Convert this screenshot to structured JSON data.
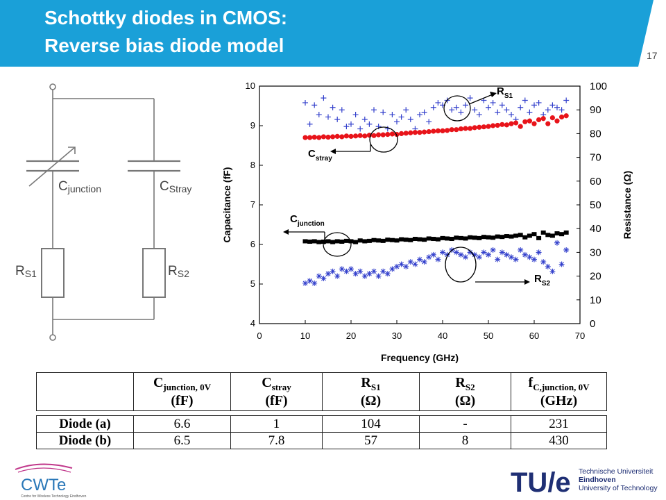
{
  "slide": {
    "title_line1": "Schottky diodes in CMOS:",
    "title_line2": "Reverse bias diode model",
    "page_number": "17",
    "banner_color": "#1aa0d8"
  },
  "schematic": {
    "c_junction": "C",
    "c_junction_sub": "junction",
    "c_stray": "C",
    "c_stray_sub": "Stray",
    "r_s1": "R",
    "r_s1_sub": "S1",
    "r_s2": "R",
    "r_s2_sub": "S2"
  },
  "chart_data": {
    "type": "scatter",
    "xlabel": "Frequency (GHz)",
    "ylabel_left": "Capacitance (fF)",
    "ylabel_right": "Resistance (Ω)",
    "xlim": [
      0,
      70
    ],
    "ylim_left": [
      4,
      10
    ],
    "ylim_right": [
      0,
      100
    ],
    "x_ticks": [
      0,
      10,
      20,
      30,
      40,
      50,
      60,
      70
    ],
    "y_left_ticks": [
      4,
      5,
      6,
      7,
      8,
      9,
      10
    ],
    "y_right_ticks": [
      0,
      10,
      20,
      30,
      40,
      50,
      60,
      70,
      80,
      90,
      100
    ],
    "annotations": [
      {
        "text": "R",
        "sub": "S1"
      },
      {
        "text": "C",
        "sub": "stray"
      },
      {
        "text": "C",
        "sub": "junction"
      },
      {
        "text": "R",
        "sub": "S2"
      }
    ],
    "series": [
      {
        "axis": "right",
        "marker": "plus",
        "color": "#3340cc",
        "x": [
          10,
          11,
          12,
          13,
          14,
          15,
          16,
          17,
          18,
          19,
          20,
          21,
          22,
          23,
          24,
          25,
          26,
          27,
          28,
          29,
          30,
          31,
          32,
          33,
          34,
          35,
          36,
          37,
          38,
          39,
          40,
          41,
          42,
          43,
          44,
          45,
          46,
          47,
          48,
          49,
          50,
          51,
          52,
          53,
          54,
          55,
          56,
          57,
          58,
          59,
          60,
          61,
          62,
          63,
          64,
          65,
          66,
          67
        ],
        "y": [
          93,
          84,
          92,
          88,
          95,
          87,
          91,
          86,
          90,
          83,
          84,
          88,
          82,
          86,
          84,
          90,
          83,
          89,
          82,
          88,
          85,
          87,
          90,
          86,
          82,
          88,
          89,
          85,
          91,
          93,
          92,
          94,
          90,
          91,
          89,
          92,
          95,
          90,
          88,
          94,
          91,
          93,
          89,
          92,
          90,
          88,
          86,
          91,
          94,
          89,
          92,
          93,
          88,
          90,
          92,
          91,
          90,
          94
        ]
      },
      {
        "axis": "left",
        "marker": "dot",
        "color": "#e8141a",
        "x": [
          10,
          11,
          12,
          13,
          14,
          15,
          16,
          17,
          18,
          19,
          20,
          21,
          22,
          23,
          24,
          25,
          26,
          27,
          28,
          29,
          30,
          31,
          32,
          33,
          34,
          35,
          36,
          37,
          38,
          39,
          40,
          41,
          42,
          43,
          44,
          45,
          46,
          47,
          48,
          49,
          50,
          51,
          52,
          53,
          54,
          55,
          56,
          57,
          58,
          59,
          60,
          61,
          62,
          63,
          64,
          65,
          66,
          67
        ],
        "y": [
          8.7,
          8.7,
          8.71,
          8.7,
          8.72,
          8.71,
          8.72,
          8.73,
          8.72,
          8.74,
          8.73,
          8.74,
          8.75,
          8.74,
          8.76,
          8.75,
          8.77,
          8.77,
          8.78,
          8.79,
          8.78,
          8.8,
          8.81,
          8.82,
          8.83,
          8.83,
          8.84,
          8.85,
          8.86,
          8.87,
          8.87,
          8.88,
          8.9,
          8.9,
          8.92,
          8.93,
          8.93,
          8.95,
          8.96,
          8.97,
          8.98,
          9.0,
          9.01,
          9.03,
          9.02,
          9.05,
          9.07,
          8.98,
          9.1,
          9.12,
          9.05,
          9.15,
          9.18,
          9.05,
          9.2,
          9.12,
          9.22,
          9.25
        ]
      },
      {
        "axis": "left",
        "marker": "square",
        "color": "#000000",
        "x": [
          10,
          11,
          12,
          13,
          14,
          15,
          16,
          17,
          18,
          19,
          20,
          21,
          22,
          23,
          24,
          25,
          26,
          27,
          28,
          29,
          30,
          31,
          32,
          33,
          34,
          35,
          36,
          37,
          38,
          39,
          40,
          41,
          42,
          43,
          44,
          45,
          46,
          47,
          48,
          49,
          50,
          51,
          52,
          53,
          54,
          55,
          56,
          57,
          58,
          59,
          60,
          61,
          62,
          63,
          64,
          65,
          66,
          67
        ],
        "y": [
          6.08,
          6.07,
          6.08,
          6.06,
          6.07,
          6.08,
          6.06,
          6.08,
          6.07,
          6.09,
          6.08,
          6.06,
          6.1,
          6.08,
          6.09,
          6.11,
          6.1,
          6.09,
          6.12,
          6.11,
          6.1,
          6.13,
          6.12,
          6.11,
          6.14,
          6.13,
          6.12,
          6.15,
          6.14,
          6.13,
          6.16,
          6.15,
          6.14,
          6.17,
          6.16,
          6.15,
          6.18,
          6.17,
          6.16,
          6.19,
          6.18,
          6.17,
          6.2,
          6.19,
          6.21,
          6.2,
          6.22,
          6.24,
          6.18,
          6.22,
          6.26,
          6.16,
          6.3,
          6.24,
          6.22,
          6.28,
          6.26,
          6.3
        ]
      },
      {
        "axis": "right",
        "marker": "star",
        "color": "#3340cc",
        "x": [
          10,
          11,
          12,
          13,
          14,
          15,
          16,
          17,
          18,
          19,
          20,
          21,
          22,
          23,
          24,
          25,
          26,
          27,
          28,
          29,
          30,
          31,
          32,
          33,
          34,
          35,
          36,
          37,
          38,
          39,
          40,
          41,
          42,
          43,
          44,
          45,
          46,
          47,
          48,
          49,
          50,
          51,
          52,
          53,
          54,
          55,
          56,
          57,
          58,
          59,
          60,
          61,
          62,
          63,
          64,
          65,
          66,
          67
        ],
        "y": [
          17,
          18,
          17,
          20,
          19,
          21,
          22,
          20,
          23,
          22,
          23,
          21,
          22,
          20,
          21,
          22,
          20,
          22,
          21,
          23,
          24,
          25,
          24,
          26,
          25,
          27,
          26,
          28,
          29,
          27,
          30,
          29,
          31,
          30,
          29,
          28,
          30,
          29,
          28,
          30,
          29,
          31,
          27,
          30,
          29,
          28,
          27,
          31,
          29,
          28,
          27,
          30,
          26,
          24,
          22,
          34,
          25,
          31
        ]
      }
    ]
  },
  "table": {
    "headers": [
      {
        "main": "",
        "sub": "",
        "unit": ""
      },
      {
        "main": "C",
        "sub": "junction, 0V",
        "unit": "(fF)"
      },
      {
        "main": "C",
        "sub": "stray",
        "unit": "(fF)"
      },
      {
        "main": "R",
        "sub": "S1",
        "unit": "(Ω)"
      },
      {
        "main": "R",
        "sub": "S2",
        "unit": "(Ω)"
      },
      {
        "main": "f",
        "sub": "C,junction, 0V",
        "unit": "(GHz)"
      }
    ],
    "rows": [
      [
        "Diode (a)",
        "6.6",
        "1",
        "104",
        "-",
        "231"
      ],
      [
        "Diode (b)",
        "6.5",
        "7.8",
        "57",
        "8",
        "430"
      ]
    ]
  },
  "logos": {
    "cwte_name": "CWTe",
    "cwte_tagline": "Centre for Wireless Technology Eindhoven",
    "tue_mark": "TU/e",
    "tue_line1": "Technische Universiteit",
    "tue_line2": "Eindhoven",
    "tue_line3": "University of Technology",
    "tue_color": "#1f2f74"
  }
}
